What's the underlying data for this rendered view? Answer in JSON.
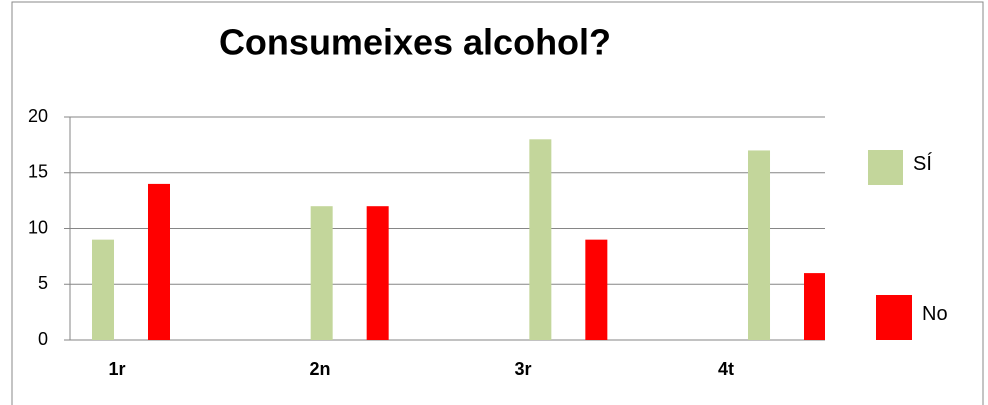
{
  "chart_data": {
    "type": "bar",
    "title": "Consumeixes alcohol?",
    "categories": [
      "1r",
      "2n",
      "3r",
      "4t"
    ],
    "series": [
      {
        "name": "SÍ",
        "color": "#c3d69b",
        "values": [
          9,
          12,
          18,
          17
        ]
      },
      {
        "name": "No",
        "color": "#ff0000",
        "values": [
          14,
          12,
          9,
          6
        ]
      }
    ],
    "ylim": [
      0,
      20
    ],
    "yticks": [
      0,
      5,
      10,
      15,
      20
    ],
    "grid": true,
    "legend": "right"
  }
}
